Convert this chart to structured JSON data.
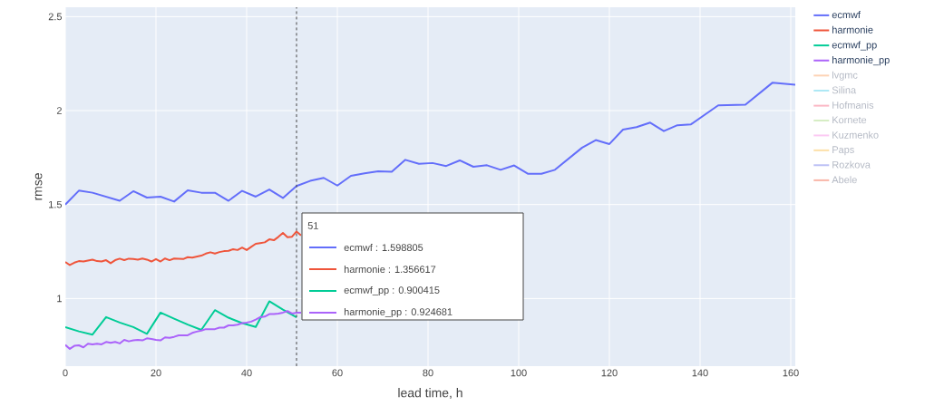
{
  "chart_data": {
    "type": "line",
    "xlabel": "lead time, h",
    "ylabel": "rmse",
    "xlim": [
      0,
      161
    ],
    "ylim": [
      0.64,
      2.55
    ],
    "xticks": [
      0,
      20,
      40,
      60,
      80,
      100,
      120,
      140,
      160
    ],
    "yticks": [
      1,
      1.5,
      2,
      2.5
    ],
    "grid": true,
    "legend": "right",
    "line_style": "solid",
    "marker": "none",
    "ref_lines": [
      {
        "axis": "x",
        "value": 51,
        "line_style": "dashed",
        "color": "#444444"
      }
    ],
    "annotations": [
      "51",
      "ecmwf : 1.598805",
      "harmonie : 1.356617",
      "ecmwf_pp : 0.900415",
      "harmonie_pp : 0.924681"
    ],
    "series": [
      {
        "name": "ecmwf",
        "color": "#636efa",
        "x": [
          0,
          3,
          6,
          12,
          15,
          18,
          21,
          24,
          27,
          30,
          33,
          36,
          39,
          42,
          45,
          48,
          51,
          54,
          57,
          60,
          63,
          66,
          69,
          72,
          75,
          78,
          81,
          84,
          87,
          90,
          93,
          96,
          99,
          102,
          105,
          108,
          114,
          117,
          120,
          123,
          126,
          129,
          132,
          135,
          138,
          144,
          150,
          156,
          161
        ],
        "values": [
          1.5,
          1.574,
          1.563,
          1.52,
          1.571,
          1.537,
          1.542,
          1.516,
          1.576,
          1.563,
          1.563,
          1.52,
          1.573,
          1.542,
          1.58,
          1.535,
          1.598805,
          1.626,
          1.642,
          1.601,
          1.653,
          1.666,
          1.677,
          1.674,
          1.738,
          1.717,
          1.721,
          1.705,
          1.735,
          1.701,
          1.709,
          1.685,
          1.708,
          1.664,
          1.664,
          1.685,
          1.803,
          1.843,
          1.822,
          1.899,
          1.912,
          1.936,
          1.891,
          1.922,
          1.927,
          2.028,
          2.031,
          2.149,
          2.138
        ]
      },
      {
        "name": "harmonie",
        "color": "#ef553b",
        "x": [
          0,
          1,
          2,
          3,
          4,
          5,
          6,
          7,
          8,
          9,
          10,
          11,
          12,
          13,
          14,
          15,
          16,
          17,
          18,
          19,
          20,
          21,
          22,
          23,
          24,
          25,
          26,
          27,
          28,
          29,
          30,
          31,
          32,
          33,
          34,
          35,
          36,
          37,
          38,
          39,
          40,
          41,
          42,
          43,
          44,
          45,
          46,
          47,
          48,
          49,
          50,
          51,
          52
        ],
        "values": [
          1.194,
          1.178,
          1.191,
          1.199,
          1.197,
          1.202,
          1.207,
          1.199,
          1.197,
          1.204,
          1.188,
          1.204,
          1.212,
          1.204,
          1.212,
          1.21,
          1.207,
          1.213,
          1.207,
          1.197,
          1.21,
          1.197,
          1.213,
          1.204,
          1.213,
          1.212,
          1.21,
          1.22,
          1.218,
          1.223,
          1.228,
          1.239,
          1.246,
          1.239,
          1.247,
          1.252,
          1.254,
          1.262,
          1.258,
          1.271,
          1.258,
          1.275,
          1.291,
          1.295,
          1.299,
          1.315,
          1.31,
          1.328,
          1.349,
          1.326,
          1.329,
          1.356617,
          1.336
        ]
      },
      {
        "name": "ecmwf_pp",
        "color": "#00cc96",
        "x": [
          0,
          3,
          6,
          9,
          12,
          15,
          18,
          21,
          24,
          27,
          30,
          33,
          36,
          39,
          42,
          45,
          48,
          51
        ],
        "values": [
          0.848,
          0.825,
          0.808,
          0.901,
          0.872,
          0.848,
          0.812,
          0.925,
          0.893,
          0.861,
          0.833,
          0.938,
          0.898,
          0.869,
          0.849,
          0.985,
          0.941,
          0.900415
        ]
      },
      {
        "name": "harmonie_pp",
        "color": "#ab63fa",
        "x": [
          0,
          1,
          2,
          3,
          4,
          5,
          6,
          7,
          8,
          9,
          10,
          11,
          12,
          13,
          14,
          15,
          16,
          17,
          18,
          19,
          20,
          21,
          22,
          23,
          24,
          25,
          26,
          27,
          28,
          29,
          30,
          31,
          32,
          33,
          34,
          35,
          36,
          37,
          38,
          39,
          40,
          41,
          42,
          43,
          44,
          45,
          46,
          47,
          48,
          49,
          50,
          51,
          52
        ],
        "values": [
          0.753,
          0.732,
          0.748,
          0.751,
          0.74,
          0.759,
          0.756,
          0.759,
          0.756,
          0.769,
          0.764,
          0.769,
          0.761,
          0.78,
          0.772,
          0.777,
          0.78,
          0.777,
          0.788,
          0.785,
          0.78,
          0.777,
          0.793,
          0.791,
          0.796,
          0.804,
          0.804,
          0.804,
          0.817,
          0.824,
          0.829,
          0.837,
          0.837,
          0.837,
          0.845,
          0.845,
          0.857,
          0.857,
          0.861,
          0.869,
          0.872,
          0.877,
          0.888,
          0.901,
          0.904,
          0.917,
          0.917,
          0.92,
          0.925,
          0.933,
          0.92,
          0.924681,
          0.925
        ]
      },
      {
        "name": "lvgmc",
        "color": "#fdd3b5"
      },
      {
        "name": "Silina",
        "color": "#aee8f5"
      },
      {
        "name": "Hofmanis",
        "color": "#fbb8c5"
      },
      {
        "name": "Kornete",
        "color": "#d6edc4"
      },
      {
        "name": "Kuzmenko",
        "color": "#fccaf3"
      },
      {
        "name": "Paps",
        "color": "#fde0a8"
      },
      {
        "name": "Rozkova",
        "color": "#bcc0f5"
      },
      {
        "name": "Abele",
        "color": "#f9b6a8"
      }
    ]
  }
}
